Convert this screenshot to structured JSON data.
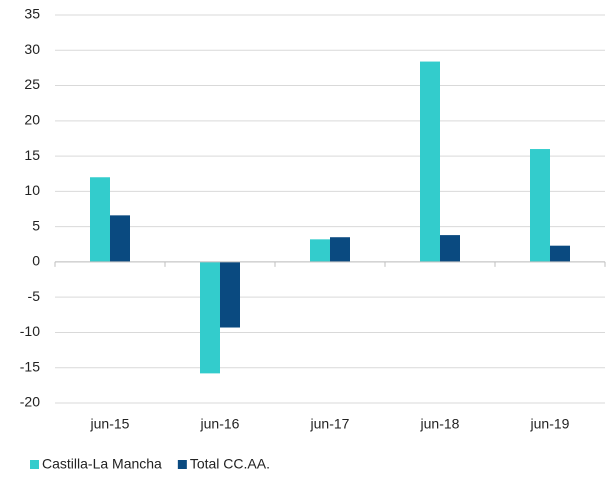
{
  "chart_data": {
    "type": "bar",
    "categories": [
      "jun-15",
      "jun-16",
      "jun-17",
      "jun-18",
      "jun-19"
    ],
    "series": [
      {
        "name": "Castilla-La Mancha",
        "color": "#33cccc",
        "values": [
          12,
          -15.8,
          3.2,
          28.4,
          16
        ]
      },
      {
        "name": "Total CC.AA.",
        "color": "#0a4a80",
        "values": [
          6.6,
          -9.3,
          3.5,
          3.8,
          2.3
        ]
      }
    ],
    "ylim": [
      -20,
      35
    ],
    "yticks": [
      -20,
      -15,
      -10,
      -5,
      0,
      5,
      10,
      15,
      20,
      25,
      30,
      35
    ],
    "grid": true,
    "legend": "bottom"
  }
}
